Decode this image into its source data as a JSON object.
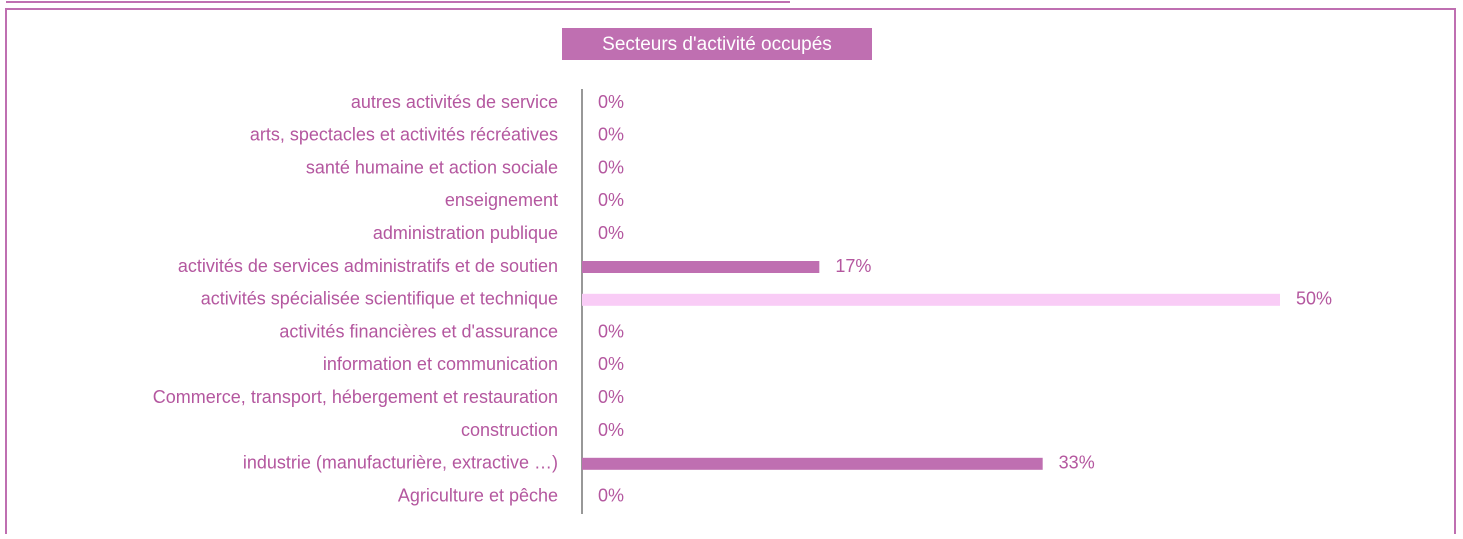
{
  "chart_data": {
    "type": "barh",
    "title": "Secteurs d'activité occupés",
    "categories": [
      "autres activités de service",
      "arts, spectacles et activités récréatives",
      "santé humaine et action sociale",
      "enseignement",
      "administration publique",
      "activités de services administratifs et de soutien",
      "activités spécialisée scientifique et technique",
      "activités financières et d'assurance",
      "information et communication",
      "Commerce, transport, hébergement et restauration",
      "construction",
      "industrie (manufacturière, extractive …)",
      "Agriculture et pêche"
    ],
    "values": [
      0,
      0,
      0,
      0,
      0,
      17,
      50,
      0,
      0,
      0,
      0,
      33,
      0
    ],
    "value_labels": [
      "0%",
      "0%",
      "0%",
      "0%",
      "0%",
      "17%",
      "50%",
      "0%",
      "0%",
      "0%",
      "0%",
      "33%",
      "0%"
    ],
    "colors": [
      "#bf6fb1",
      "#bf6fb1",
      "#bf6fb1",
      "#bf6fb1",
      "#bf6fb1",
      "#bf6fb1",
      "#f9ccf6",
      "#bf6fb1",
      "#bf6fb1",
      "#bf6fb1",
      "#bf6fb1",
      "#bf6fb1",
      "#bf6fb1"
    ]
  }
}
